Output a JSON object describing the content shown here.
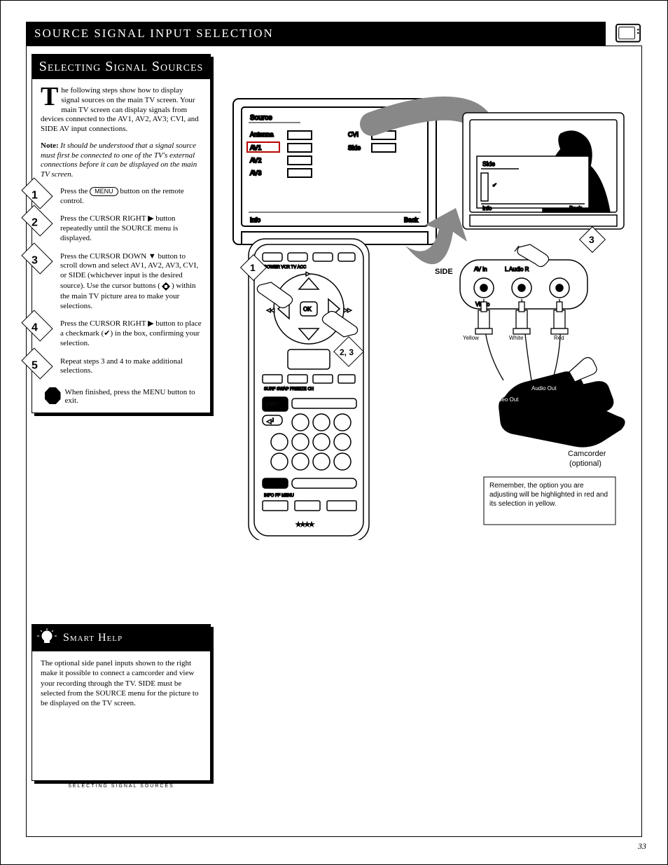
{
  "page": {
    "title_prefix": "S",
    "title_rest": "OURCE SIGNAL INPUT SELECTION",
    "number": "33"
  },
  "sidebar": {
    "heading": "Selecting Signal Sources",
    "intro_drop": "T",
    "intro": "he following steps show how to display signal sources on the main TV screen. Your main TV screen can display signals from devices connected to the AV1, AV2, AV3; CVI, and SIDE AV input connections.",
    "note": "<b>Note:</b> It should be understood that a signal source must first be connected to one of the TV's external connections before it can be displayed on the main TV screen.",
    "steps": [
      {
        "num": "1",
        "html": "Press the <span class='press'>MENU</span> button on the remote control."
      },
      {
        "num": "2",
        "html": "Press the CURSOR RIGHT <span style='font-family:Arial'>▶</span> button repeatedly until the SOURCE menu is displayed."
      },
      {
        "num": "3",
        "html": "Press the CURSOR DOWN <span style='font-family:Arial'>▼</span> button to scroll down and select AV1, AV2, AV3, CVI, or SIDE (whichever input is the desired source). Use the cursor buttons (<span class='dpad'><span class='l'></span><span class='r'></span></span>) within the main TV picture area to make your selections."
      },
      {
        "num": "4",
        "html": "Press the CURSOR RIGHT <span style='font-family:Arial'>▶</span> button to place a checkmark (<span class='check'>✔</span>) in the box, confirming your selection."
      },
      {
        "num": "5",
        "html": "Repeat steps 3 and 4 to make additional selections."
      }
    ],
    "stop": "When finished, press the MENU button to exit."
  },
  "help": {
    "heading": "Smart Help",
    "body": "The optional side panel inputs shown to the right make it possible to connect a camcorder and view your recording through the TV. SIDE must be selected from the SOURCE menu for the picture to be displayed on the TV screen."
  },
  "selecting_text": "SELECTING SIGNAL SOURCES",
  "illus": {
    "menu": {
      "title": "Source",
      "footer_l": "Info",
      "footer_r": "Back",
      "left_items": [
        "Antenna",
        "AV1",
        "AV2",
        "AV3"
      ],
      "right_items": [
        "CVI",
        "Side"
      ]
    },
    "sidepanel": {
      "title": "Side",
      "footer_l": "Info",
      "footer_r": "Back"
    },
    "labels": {
      "av_in": "AV in",
      "l_audio_r": "L   Audio    R",
      "video": "Video",
      "side_unit": "SIDE",
      "yellow": "Yellow",
      "white": "White",
      "red": "Red",
      "audio_out": "Audio Out",
      "video_out": "Video Out",
      "camcorder": "Camcorder\n(optional)",
      "step1": "1",
      "step2_3": "2, 3",
      "step3": "3"
    },
    "notebox": "Remember, the option you are adjusting will be highlighted in red and its selection in yellow.",
    "remote": {
      "buttons0": [
        "POWER",
        "VCR",
        "TV",
        "ACC"
      ],
      "buttons1": [
        "INFO",
        "FF",
        "MENU"
      ],
      "buttons2": [
        "SURF",
        "SWAP",
        "FREEZE",
        "CH"
      ],
      "pip": "PIP",
      "vcr": "VCR ● REC"
    }
  }
}
